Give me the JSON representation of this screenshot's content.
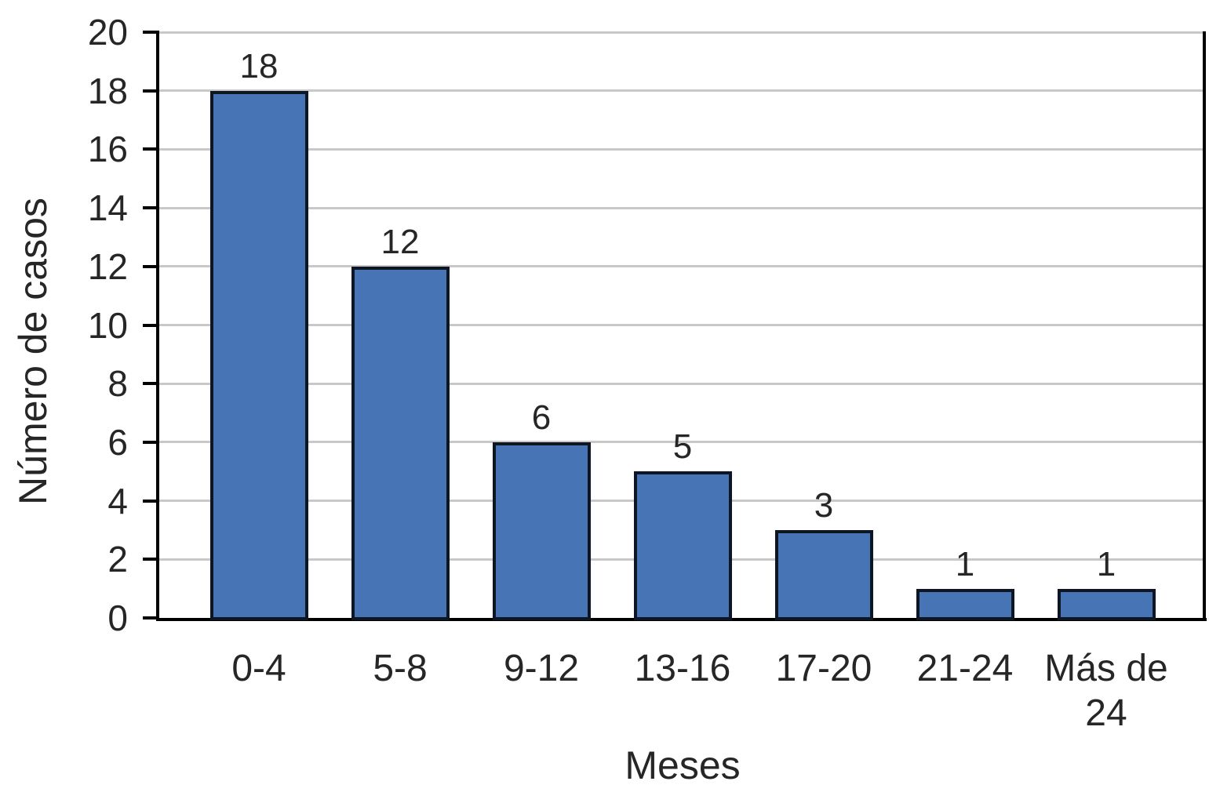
{
  "chart_data": {
    "type": "bar",
    "categories": [
      "0-4",
      "5-8",
      "9-12",
      "13-16",
      "17-20",
      "21-24",
      "Más de 24"
    ],
    "values": [
      18,
      12,
      6,
      5,
      3,
      1,
      1
    ],
    "data_labels": [
      "18",
      "12",
      "6",
      "5",
      "3",
      "1",
      "1"
    ],
    "xlabel": "Meses",
    "ylabel": "Número de casos",
    "ylim": [
      0,
      20
    ],
    "ytick_step": 2,
    "ytick_labels": [
      "0",
      "2",
      "4",
      "6",
      "8",
      "10",
      "12",
      "14",
      "16",
      "18",
      "20"
    ],
    "grid": "horizontal",
    "legend": "none",
    "colors": {
      "bar_fill": "#4674B5",
      "bar_border": "#0E1523",
      "gridline": "#C8C8C8",
      "axis": "#000000",
      "text": "#262626",
      "background": "#FFFFFF"
    }
  }
}
